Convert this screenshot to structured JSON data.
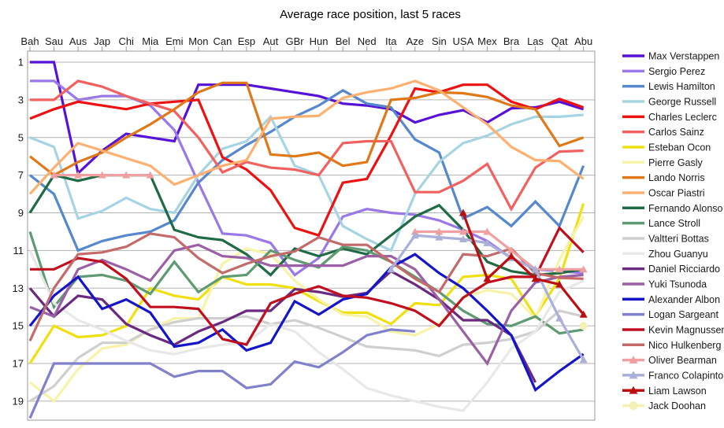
{
  "chart_data": {
    "type": "line",
    "title": "Average race position, last 5 races",
    "legend_position": "right",
    "grid": "horizontal-odd-positions",
    "x_axis": {
      "position": "top",
      "categories": [
        "Bah",
        "Sau",
        "Aus",
        "Jap",
        "Chi",
        "Mia",
        "Emi",
        "Mon",
        "Can",
        "Esp",
        "Aut",
        "GBr",
        "Hun",
        "Bel",
        "Ned",
        "Ita",
        "Aze",
        "Sin",
        "USA",
        "Mex",
        "Bra",
        "Las",
        "Qat",
        "Abu"
      ]
    },
    "y_axis": {
      "inverted": true,
      "range": [
        1,
        20
      ],
      "ticks": [
        1,
        3,
        5,
        7,
        9,
        11,
        13,
        15,
        17,
        19
      ]
    },
    "series": [
      {
        "name": "Max Verstappen",
        "color": "#5712d8",
        "marker": "none",
        "values": [
          1,
          1,
          6.9,
          5.7,
          4.8,
          5,
          5.2,
          2.2,
          2.2,
          2.2,
          2.4,
          2.6,
          2.8,
          3.2,
          3.3,
          3.5,
          4.2,
          3.8,
          3.55,
          4.2,
          3.45,
          3.4,
          3.1,
          3.5
        ]
      },
      {
        "name": "Sergio Perez",
        "color": "#9b78e8",
        "marker": "none",
        "values": [
          2,
          2,
          3,
          2.8,
          2.8,
          3.3,
          4.6,
          7.4,
          10.1,
          10.2,
          10.6,
          12.3,
          11.4,
          9.2,
          8.8,
          9,
          9.1,
          9.4,
          9.9,
          10.5,
          11.4,
          12,
          12.1,
          12.2
        ]
      },
      {
        "name": "Lewis Hamilton",
        "color": "#5588cc",
        "marker": "none",
        "values": [
          7,
          8,
          11,
          10.5,
          10.2,
          10,
          9.4,
          7.4,
          6.2,
          5.4,
          4.7,
          3.9,
          3.3,
          2.5,
          3.2,
          3.4,
          5.1,
          5.8,
          9.3,
          8.7,
          9.7,
          8.4,
          9.7,
          6.5
        ]
      },
      {
        "name": "George Russell",
        "color": "#a6d4e2",
        "marker": "none",
        "values": [
          5,
          5.5,
          9.3,
          8.9,
          8.2,
          8.8,
          9,
          7,
          5.6,
          5.2,
          3.9,
          6.5,
          7,
          9.7,
          10.4,
          11,
          8,
          6.3,
          5.3,
          4.9,
          4.3,
          3.9,
          3.9,
          3.8
        ]
      },
      {
        "name": "Charles Leclerc",
        "color": "#ee1111",
        "marker": "none",
        "values": [
          4,
          3.5,
          3.1,
          3.3,
          3.5,
          3.2,
          3.1,
          3,
          6.05,
          6.7,
          7.8,
          9.8,
          10.2,
          7.4,
          7.2,
          4.9,
          2.4,
          2.6,
          2.2,
          2.2,
          3.1,
          3.5,
          2.95,
          3.4
        ]
      },
      {
        "name": "Carlos Sainz",
        "color": "#f26060",
        "marker": "none",
        "values": [
          3,
          3,
          2,
          2.3,
          2.8,
          3.2,
          3.6,
          5,
          6.85,
          6.3,
          6.6,
          6.7,
          7,
          5.3,
          5.2,
          5.2,
          7.9,
          7.9,
          7.3,
          6.4,
          8.8,
          6.6,
          5.75,
          5.7
        ]
      },
      {
        "name": "Esteban Ocon",
        "color": "#f0e010",
        "marker": "none",
        "values": [
          17,
          15,
          15.6,
          15.5,
          15,
          13,
          13.4,
          13.6,
          12.4,
          12.8,
          12.8,
          13,
          13.7,
          14.3,
          14.3,
          14.9,
          13.8,
          13.9,
          12.4,
          12.3,
          12.5,
          14.5,
          12.5,
          8.5
        ]
      },
      {
        "name": "Pierre Gasly",
        "color": "#f7f3a8",
        "marker": "none",
        "values": [
          18,
          19,
          17.3,
          16.2,
          16,
          15.2,
          14.6,
          14.6,
          11.7,
          10.9,
          11.2,
          12.6,
          13.6,
          14.4,
          14.5,
          15.3,
          15.5,
          14.9,
          13.5,
          13.1,
          13.3,
          14.6,
          11.5,
          9.2
        ]
      },
      {
        "name": "Lando Norris",
        "color": "#e07818",
        "marker": "none",
        "values": [
          6,
          7,
          6.3,
          5.8,
          5,
          4.3,
          3.5,
          2.6,
          2.1,
          2.1,
          5.9,
          6,
          5.8,
          6.5,
          6.3,
          3,
          2.9,
          2.6,
          2.65,
          2.85,
          3.3,
          3.5,
          5.45,
          5
        ]
      },
      {
        "name": "Oscar Piastri",
        "color": "#ffb070",
        "marker": "none",
        "values": [
          8,
          6.6,
          5.3,
          5.7,
          6.1,
          6.5,
          7.5,
          7,
          6.5,
          6.2,
          4,
          3.9,
          3.85,
          2.9,
          2.6,
          2.4,
          2,
          2.5,
          3.4,
          4.3,
          5.5,
          6.2,
          6.25,
          7.2
        ]
      },
      {
        "name": "Fernando Alonso",
        "color": "#1f6b45",
        "marker": "none",
        "values": [
          9,
          7,
          7.3,
          7,
          7,
          7,
          9.9,
          10.3,
          10.45,
          11.2,
          12.3,
          10.9,
          11.3,
          10.9,
          11.2,
          10.2,
          9.2,
          8.6,
          9.9,
          11.6,
          12.1,
          12.3,
          12.2,
          12
        ]
      },
      {
        "name": "Lance Stroll",
        "color": "#5e9b72",
        "marker": "none",
        "values": [
          10,
          14,
          12.4,
          12.3,
          12.6,
          13.3,
          11.6,
          13.2,
          12.4,
          12.3,
          11,
          11.5,
          11.9,
          10.8,
          11,
          11.6,
          12.4,
          13.2,
          14.2,
          14.9,
          15,
          14.5,
          15.4,
          15.2
        ]
      },
      {
        "name": "Valtteri Bottas",
        "color": "#cfcfcf",
        "marker": "none",
        "values": [
          19,
          18.2,
          16.7,
          15.9,
          15.9,
          15.2,
          14.8,
          14.6,
          14.6,
          14.5,
          14.9,
          14.7,
          15.1,
          15.6,
          16.1,
          16.2,
          16.3,
          16.6,
          16,
          15.9,
          15.7,
          15.3,
          14.2,
          14.5
        ]
      },
      {
        "name": "Zhou Guanyu",
        "color": "#e8e8e8",
        "marker": "none",
        "values": [
          11,
          13.8,
          14.7,
          15.2,
          15.8,
          16.3,
          16.5,
          16.2,
          16,
          15.9,
          14.9,
          15.3,
          16.4,
          17.3,
          18.3,
          18.7,
          19,
          19.3,
          19.5,
          18,
          16.2,
          15.3,
          13.2,
          12.6
        ]
      },
      {
        "name": "Daniel Ricciardo",
        "color": "#6a2a80",
        "marker": "none",
        "values": [
          13,
          14.5,
          13.4,
          13.6,
          14.9,
          15.5,
          16,
          15.3,
          14.8,
          14.2,
          14.2,
          13.05,
          13.2,
          13.45,
          13.25,
          12.1,
          12.8,
          13.6,
          14.7,
          14.7,
          15.5,
          18,
          null,
          null
        ]
      },
      {
        "name": "Yuki Tsunoda",
        "color": "#9a5fa5",
        "marker": "none",
        "values": [
          14,
          14.5,
          12,
          11.5,
          12,
          12.6,
          11,
          10.7,
          11.3,
          11.4,
          11.8,
          11.8,
          11.8,
          11.8,
          11.3,
          11.3,
          12,
          13.6,
          15.3,
          17,
          14.2,
          12.7,
          12.4,
          12.3
        ]
      },
      {
        "name": "Alexander Albon",
        "color": "#1515c8",
        "marker": "none",
        "values": [
          15,
          13.4,
          12.4,
          14.1,
          13.6,
          14.3,
          16.1,
          15.9,
          15.2,
          16.3,
          15.9,
          13.7,
          14.4,
          13.6,
          13.3,
          11.9,
          11.2,
          12.2,
          13,
          14.2,
          15.5,
          18.4,
          17.4,
          16.5
        ]
      },
      {
        "name": "Logan Sargeant",
        "color": "#8080cc",
        "marker": "none",
        "values": [
          19.9,
          17,
          17,
          17,
          17,
          17,
          17.7,
          17.4,
          17.4,
          18.3,
          18.1,
          16.9,
          17.2,
          16.4,
          15.5,
          15.2,
          15.3,
          null,
          null,
          null,
          null,
          null,
          null,
          null
        ]
      },
      {
        "name": "Kevin Magnussen",
        "color": "#c01020",
        "marker": "none",
        "values": [
          12,
          12,
          11.4,
          11.6,
          12.5,
          14,
          14,
          14.1,
          15.7,
          16,
          13.8,
          13.3,
          12.9,
          13.4,
          13.5,
          13.8,
          14.2,
          15,
          13.5,
          12.7,
          12.4,
          12.4,
          9.8,
          11.1
        ]
      },
      {
        "name": "Nico Hulkenberg",
        "color": "#c46a6a",
        "marker": "none",
        "values": [
          15.8,
          13,
          11.2,
          11.1,
          10.8,
          10.1,
          10.3,
          11.4,
          12.2,
          11.7,
          11.3,
          11.05,
          10.3,
          10.7,
          10.7,
          11.6,
          12.5,
          13.2,
          11.2,
          11.3,
          10.9,
          12.2,
          12.45,
          12.5
        ]
      },
      {
        "name": "Oliver Bearman",
        "color": "#f0a0a0",
        "marker": "triangle",
        "values": [
          null,
          7,
          7,
          7,
          7,
          7,
          null,
          null,
          null,
          null,
          null,
          null,
          null,
          null,
          null,
          null,
          10,
          10,
          10,
          10,
          11,
          12,
          12,
          12
        ]
      },
      {
        "name": "Franco Colapinto",
        "color": "#aab0d8",
        "marker": "triangle",
        "values": [
          null,
          null,
          null,
          null,
          null,
          null,
          null,
          null,
          null,
          null,
          null,
          null,
          null,
          null,
          null,
          12,
          10.2,
          10.3,
          10.4,
          10.6,
          11.4,
          12,
          14.6,
          16.8
        ]
      },
      {
        "name": "Liam Lawson",
        "color": "#bb0e10",
        "marker": "triangle",
        "values": [
          null,
          null,
          null,
          null,
          null,
          null,
          null,
          null,
          null,
          null,
          null,
          null,
          null,
          null,
          null,
          null,
          null,
          null,
          9,
          12.5,
          11.3,
          12.5,
          12.8,
          14.4
        ]
      },
      {
        "name": "Jack Doohan",
        "color": "#f5f0b5",
        "marker": "circle",
        "values": [
          null,
          null,
          null,
          null,
          null,
          null,
          null,
          null,
          null,
          null,
          null,
          null,
          null,
          null,
          null,
          null,
          null,
          null,
          null,
          null,
          null,
          null,
          null,
          15
        ]
      }
    ]
  }
}
